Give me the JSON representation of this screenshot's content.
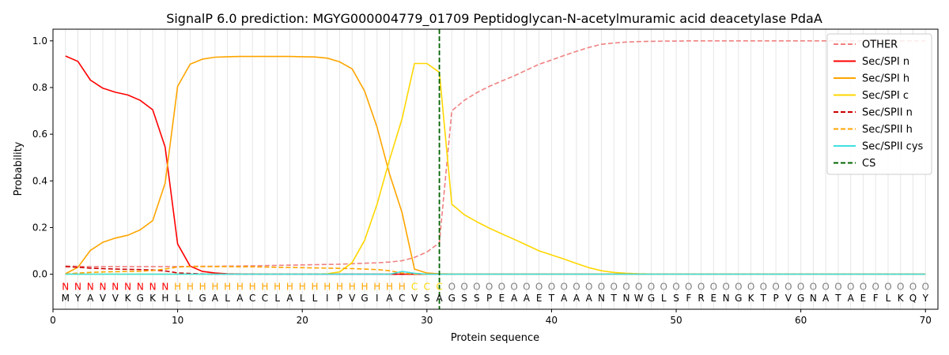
{
  "chart_data": {
    "type": "line",
    "title": "SignalP 6.0 prediction: MGYG000004779_01709 Peptidoglycan-N-acetylmuramic acid deacetylase PdaA",
    "xlabel": "Protein sequence",
    "ylabel": "Probability",
    "xlim": [
      0,
      71
    ],
    "ylim": [
      -0.15,
      1.05
    ],
    "xticks": [
      0,
      10,
      20,
      30,
      40,
      50,
      60,
      70
    ],
    "yticks": [
      0.0,
      0.2,
      0.4,
      0.6,
      0.8,
      1.0
    ],
    "ytick_labels": [
      "0.0",
      "0.2",
      "0.4",
      "0.6",
      "0.8",
      "1.0"
    ],
    "grid": "vertical lines at each residue",
    "legend_position": "top-right",
    "sequence": [
      "M",
      "Y",
      "A",
      "V",
      "V",
      "K",
      "G",
      "K",
      "H",
      "L",
      "L",
      "G",
      "A",
      "L",
      "A",
      "C",
      "C",
      "L",
      "A",
      "L",
      "L",
      "I",
      "P",
      "V",
      "G",
      "I",
      "A",
      "C",
      "V",
      "S",
      "A",
      "G",
      "S",
      "S",
      "P",
      "E",
      "A",
      "A",
      "E",
      "T",
      "A",
      "A",
      "A",
      "N",
      "T",
      "N",
      "W",
      "G",
      "L",
      "S",
      "F",
      "R",
      "E",
      "N",
      "G",
      "K",
      "T",
      "P",
      "V",
      "G",
      "N",
      "A",
      "T",
      "A",
      "E",
      "F",
      "L",
      "K",
      "Q",
      "Y"
    ],
    "labels": [
      "N",
      "N",
      "N",
      "N",
      "N",
      "N",
      "N",
      "N",
      "N",
      "H",
      "H",
      "H",
      "H",
      "H",
      "H",
      "H",
      "H",
      "H",
      "H",
      "H",
      "H",
      "H",
      "H",
      "H",
      "H",
      "H",
      "H",
      "H",
      "C",
      "C",
      "C",
      "O",
      "O",
      "O",
      "O",
      "O",
      "O",
      "O",
      "O",
      "O",
      "O",
      "O",
      "O",
      "O",
      "O",
      "O",
      "O",
      "O",
      "O",
      "O",
      "O",
      "O",
      "O",
      "O",
      "O",
      "O",
      "O",
      "O",
      "O",
      "O",
      "O",
      "O",
      "O",
      "O",
      "O",
      "O",
      "O",
      "O",
      "O",
      "O"
    ],
    "label_colors": {
      "N": "#ff0000",
      "H": "#ffa500",
      "C": "#ffd700",
      "O": "#808080"
    },
    "cs_position": 31,
    "series": [
      {
        "name": "OTHER",
        "color": "#f08080",
        "dash": "dashed",
        "values": [
          0.035,
          0.034,
          0.033,
          0.033,
          0.033,
          0.033,
          0.033,
          0.033,
          0.033,
          0.033,
          0.034,
          0.034,
          0.034,
          0.035,
          0.035,
          0.036,
          0.037,
          0.038,
          0.039,
          0.04,
          0.041,
          0.042,
          0.043,
          0.045,
          0.047,
          0.049,
          0.052,
          0.058,
          0.072,
          0.095,
          0.135,
          0.7,
          0.745,
          0.778,
          0.805,
          0.828,
          0.85,
          0.875,
          0.9,
          0.918,
          0.937,
          0.955,
          0.972,
          0.985,
          0.991,
          0.995,
          0.997,
          0.998,
          0.999,
          0.999,
          1.0,
          1.0,
          1.0,
          1.0,
          1.0,
          1.0,
          1.0,
          1.0,
          1.0,
          1.0,
          1.0,
          1.0,
          1.0,
          1.0,
          1.0,
          1.0,
          1.0,
          1.0,
          1.0,
          1.0
        ]
      },
      {
        "name": "Sec/SPI n",
        "color": "#ff0000",
        "dash": "solid",
        "values": [
          0.935,
          0.912,
          0.832,
          0.797,
          0.78,
          0.768,
          0.745,
          0.705,
          0.545,
          0.13,
          0.035,
          0.012,
          0.005,
          0.002,
          0.001,
          0.001,
          0.0,
          0.0,
          0.0,
          0.0,
          0.0,
          0.0,
          0.0,
          0.0,
          0.0,
          0.0,
          0.0,
          0.0,
          0.0,
          0.0,
          0.0,
          0.0,
          0.0,
          0.0,
          0.0,
          0.0,
          0.0,
          0.0,
          0.0,
          0.0,
          0.0,
          0.0,
          0.0,
          0.0,
          0.0,
          0.0,
          0.0,
          0.0,
          0.0,
          0.0,
          0.0,
          0.0,
          0.0,
          0.0,
          0.0,
          0.0,
          0.0,
          0.0,
          0.0,
          0.0,
          0.0,
          0.0,
          0.0,
          0.0,
          0.0,
          0.0,
          0.0,
          0.0,
          0.0,
          0.0
        ]
      },
      {
        "name": "Sec/SPI h",
        "color": "#ffa500",
        "dash": "solid",
        "values": [
          0.002,
          0.03,
          0.102,
          0.137,
          0.155,
          0.167,
          0.19,
          0.23,
          0.39,
          0.805,
          0.9,
          0.922,
          0.93,
          0.932,
          0.933,
          0.933,
          0.933,
          0.933,
          0.933,
          0.932,
          0.931,
          0.926,
          0.91,
          0.88,
          0.785,
          0.63,
          0.43,
          0.265,
          0.022,
          0.005,
          0.002,
          0.001,
          0.0,
          0.0,
          0.0,
          0.0,
          0.0,
          0.0,
          0.0,
          0.0,
          0.0,
          0.0,
          0.0,
          0.0,
          0.0,
          0.0,
          0.0,
          0.0,
          0.0,
          0.0,
          0.0,
          0.0,
          0.0,
          0.0,
          0.0,
          0.0,
          0.0,
          0.0,
          0.0,
          0.0,
          0.0,
          0.0,
          0.0,
          0.0,
          0.0,
          0.0,
          0.0,
          0.0,
          0.0,
          0.0
        ]
      },
      {
        "name": "Sec/SPI c",
        "color": "#ffd700",
        "dash": "solid",
        "values": [
          0.0,
          0.0,
          0.0,
          0.0,
          0.0,
          0.0,
          0.0,
          0.0,
          0.0,
          0.0,
          0.0,
          0.0,
          0.0,
          0.0,
          0.0,
          0.0,
          0.0,
          0.0,
          0.0,
          0.0,
          0.0,
          0.002,
          0.01,
          0.05,
          0.145,
          0.3,
          0.49,
          0.665,
          0.903,
          0.903,
          0.865,
          0.3,
          0.255,
          0.225,
          0.198,
          0.173,
          0.15,
          0.125,
          0.1,
          0.083,
          0.065,
          0.046,
          0.028,
          0.015,
          0.008,
          0.004,
          0.002,
          0.001,
          0.0,
          0.0,
          0.0,
          0.0,
          0.0,
          0.0,
          0.0,
          0.0,
          0.0,
          0.0,
          0.0,
          0.0,
          0.0,
          0.0,
          0.0,
          0.0,
          0.0,
          0.0,
          0.0,
          0.0,
          0.0,
          0.0
        ]
      },
      {
        "name": "Sec/SPII n",
        "color": "#cc0000",
        "dash": "dashed",
        "values": [
          0.033,
          0.03,
          0.026,
          0.024,
          0.022,
          0.021,
          0.02,
          0.018,
          0.014,
          0.006,
          0.003,
          0.001,
          0.0,
          0.0,
          0.0,
          0.0,
          0.0,
          0.0,
          0.0,
          0.0,
          0.0,
          0.0,
          0.0,
          0.0,
          0.0,
          0.0,
          0.0,
          0.0,
          0.0,
          0.0,
          0.0,
          0.0,
          0.0,
          0.0,
          0.0,
          0.0,
          0.0,
          0.0,
          0.0,
          0.0,
          0.0,
          0.0,
          0.0,
          0.0,
          0.0,
          0.0,
          0.0,
          0.0,
          0.0,
          0.0,
          0.0,
          0.0,
          0.0,
          0.0,
          0.0,
          0.0,
          0.0,
          0.0,
          0.0,
          0.0,
          0.0,
          0.0,
          0.0,
          0.0,
          0.0,
          0.0,
          0.0,
          0.0,
          0.0,
          0.0
        ]
      },
      {
        "name": "Sec/SPII h",
        "color": "#ffa500",
        "dash": "dashed",
        "values": [
          0.0,
          0.005,
          0.008,
          0.01,
          0.011,
          0.012,
          0.013,
          0.016,
          0.022,
          0.031,
          0.033,
          0.033,
          0.033,
          0.033,
          0.032,
          0.032,
          0.031,
          0.03,
          0.029,
          0.028,
          0.027,
          0.026,
          0.025,
          0.024,
          0.022,
          0.02,
          0.015,
          0.005,
          0.001,
          0.0,
          0.0,
          0.0,
          0.0,
          0.0,
          0.0,
          0.0,
          0.0,
          0.0,
          0.0,
          0.0,
          0.0,
          0.0,
          0.0,
          0.0,
          0.0,
          0.0,
          0.0,
          0.0,
          0.0,
          0.0,
          0.0,
          0.0,
          0.0,
          0.0,
          0.0,
          0.0,
          0.0,
          0.0,
          0.0,
          0.0,
          0.0,
          0.0,
          0.0,
          0.0,
          0.0,
          0.0,
          0.0,
          0.0,
          0.0,
          0.0
        ]
      },
      {
        "name": "Sec/SPII cys",
        "color": "#40e0e0",
        "dash": "solid",
        "values": [
          0.0,
          0.0,
          0.0,
          0.0,
          0.0,
          0.0,
          0.0,
          0.0,
          0.0,
          0.0,
          0.0,
          0.0,
          0.0,
          0.0,
          0.0,
          0.0,
          0.0,
          0.0,
          0.0,
          0.0,
          0.0,
          0.0,
          0.0,
          0.0,
          0.0,
          0.0,
          0.0,
          0.012,
          0.004,
          0.0,
          0.0,
          0.0,
          0.0,
          0.0,
          0.0,
          0.0,
          0.0,
          0.0,
          0.0,
          0.0,
          0.0,
          0.0,
          0.0,
          0.0,
          0.0,
          0.0,
          0.0,
          0.0,
          0.0,
          0.0,
          0.0,
          0.0,
          0.0,
          0.0,
          0.0,
          0.0,
          0.0,
          0.0,
          0.0,
          0.0,
          0.0,
          0.0,
          0.0,
          0.0,
          0.0,
          0.0,
          0.0,
          0.0,
          0.0,
          0.0
        ]
      }
    ],
    "legend": [
      {
        "name": "OTHER",
        "color": "#f08080",
        "dash": "dashed"
      },
      {
        "name": "Sec/SPI n",
        "color": "#ff0000",
        "dash": "solid"
      },
      {
        "name": "Sec/SPI h",
        "color": "#ffa500",
        "dash": "solid"
      },
      {
        "name": "Sec/SPI c",
        "color": "#ffd700",
        "dash": "solid"
      },
      {
        "name": "Sec/SPII n",
        "color": "#cc0000",
        "dash": "dashed"
      },
      {
        "name": "Sec/SPII h",
        "color": "#ffa500",
        "dash": "dashed"
      },
      {
        "name": "Sec/SPII cys",
        "color": "#40e0e0",
        "dash": "solid"
      },
      {
        "name": "CS",
        "color": "#006400",
        "dash": "dashed"
      }
    ]
  }
}
